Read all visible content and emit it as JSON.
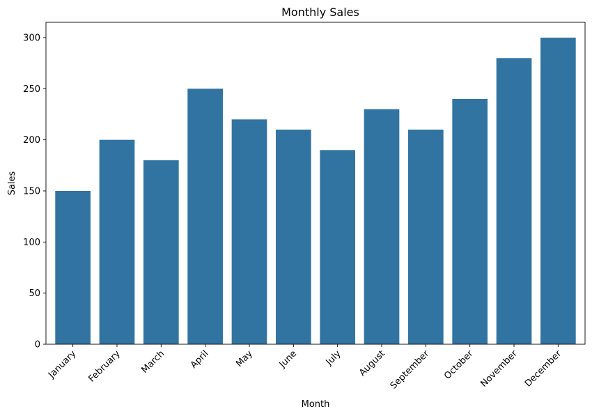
{
  "chart_data": {
    "type": "bar",
    "title": "Monthly Sales",
    "xlabel": "Month",
    "ylabel": "Sales",
    "categories": [
      "January",
      "February",
      "March",
      "April",
      "May",
      "June",
      "July",
      "August",
      "September",
      "October",
      "November",
      "December"
    ],
    "values": [
      150,
      200,
      180,
      250,
      220,
      210,
      190,
      230,
      210,
      240,
      280,
      300
    ],
    "ylim": [
      0,
      315
    ],
    "yticks": [
      0,
      50,
      100,
      150,
      200,
      250,
      300
    ],
    "grid": false,
    "bar_color": "#3274a1"
  }
}
